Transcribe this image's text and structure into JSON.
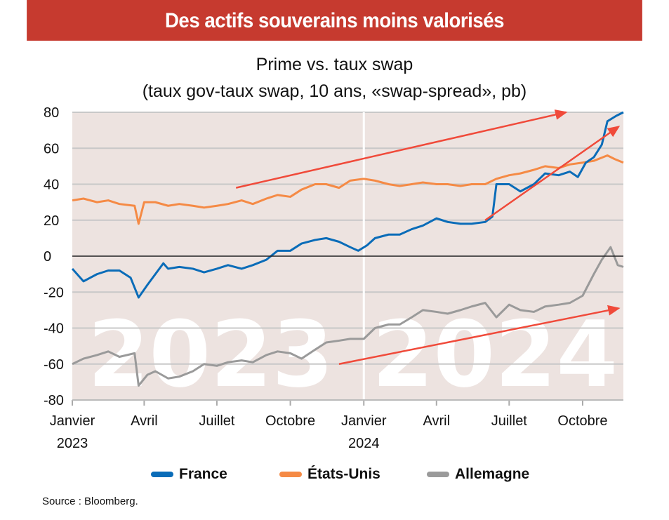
{
  "banner": "Des actifs souverains moins valorisés",
  "chart_data": {
    "type": "line",
    "title": "Prime vs. taux swap",
    "subtitle": "(taux gov-taux swap, 10 ans, «swap-spread», pb)",
    "ylim": [
      -80,
      80
    ],
    "yticks": [
      80,
      60,
      40,
      20,
      0,
      -20,
      -40,
      -60,
      -80
    ],
    "xlim": [
      "2023-01-01",
      "2024-11-21"
    ],
    "xticks": [
      {
        "date": "2023-01-01",
        "label": "Janvier",
        "sub": "2023"
      },
      {
        "date": "2023-04-01",
        "label": "Avril",
        "sub": ""
      },
      {
        "date": "2023-07-01",
        "label": "Juillet",
        "sub": ""
      },
      {
        "date": "2023-10-01",
        "label": "Octobre",
        "sub": ""
      },
      {
        "date": "2024-01-01",
        "label": "Janvier",
        "sub": "2024"
      },
      {
        "date": "2024-04-01",
        "label": "Avril",
        "sub": ""
      },
      {
        "date": "2024-07-01",
        "label": "Juillet",
        "sub": ""
      },
      {
        "date": "2024-10-01",
        "label": "Octobre",
        "sub": ""
      }
    ],
    "grid": true,
    "legend_position": "bottom",
    "watermarks": [
      "2023",
      "2024"
    ],
    "series": [
      {
        "name": "France",
        "color": "#0a6cb8",
        "points": [
          [
            "2023-01-01",
            -7
          ],
          [
            "2023-01-15",
            -14
          ],
          [
            "2023-02-01",
            -10
          ],
          [
            "2023-02-15",
            -8
          ],
          [
            "2023-03-01",
            -8
          ],
          [
            "2023-03-15",
            -12
          ],
          [
            "2023-03-25",
            -23
          ],
          [
            "2023-04-05",
            -16
          ],
          [
            "2023-04-15",
            -10
          ],
          [
            "2023-04-25",
            -4
          ],
          [
            "2023-05-01",
            -7
          ],
          [
            "2023-05-15",
            -6
          ],
          [
            "2023-06-01",
            -7
          ],
          [
            "2023-06-15",
            -9
          ],
          [
            "2023-07-01",
            -7
          ],
          [
            "2023-07-15",
            -5
          ],
          [
            "2023-08-01",
            -7
          ],
          [
            "2023-08-15",
            -5
          ],
          [
            "2023-09-01",
            -2
          ],
          [
            "2023-09-15",
            3
          ],
          [
            "2023-10-01",
            3
          ],
          [
            "2023-10-15",
            7
          ],
          [
            "2023-11-01",
            9
          ],
          [
            "2023-11-15",
            10
          ],
          [
            "2023-12-01",
            8
          ],
          [
            "2023-12-15",
            5
          ],
          [
            "2023-12-25",
            3
          ],
          [
            "2024-01-05",
            6
          ],
          [
            "2024-01-15",
            10
          ],
          [
            "2024-02-01",
            12
          ],
          [
            "2024-02-15",
            12
          ],
          [
            "2024-03-01",
            15
          ],
          [
            "2024-03-15",
            17
          ],
          [
            "2024-04-01",
            21
          ],
          [
            "2024-04-15",
            19
          ],
          [
            "2024-05-01",
            18
          ],
          [
            "2024-05-15",
            18
          ],
          [
            "2024-06-01",
            19
          ],
          [
            "2024-06-10",
            22
          ],
          [
            "2024-06-15",
            40
          ],
          [
            "2024-07-01",
            40
          ],
          [
            "2024-07-15",
            36
          ],
          [
            "2024-08-01",
            40
          ],
          [
            "2024-08-15",
            46
          ],
          [
            "2024-09-01",
            45
          ],
          [
            "2024-09-15",
            47
          ],
          [
            "2024-09-25",
            44
          ],
          [
            "2024-10-05",
            52
          ],
          [
            "2024-10-15",
            55
          ],
          [
            "2024-10-25",
            62
          ],
          [
            "2024-11-01",
            75
          ],
          [
            "2024-11-12",
            78
          ],
          [
            "2024-11-21",
            80
          ]
        ]
      },
      {
        "name": "États-Unis",
        "color": "#f58a45",
        "points": [
          [
            "2023-01-01",
            31
          ],
          [
            "2023-01-15",
            32
          ],
          [
            "2023-02-01",
            30
          ],
          [
            "2023-02-15",
            31
          ],
          [
            "2023-03-01",
            29
          ],
          [
            "2023-03-20",
            28
          ],
          [
            "2023-03-25",
            18
          ],
          [
            "2023-04-01",
            30
          ],
          [
            "2023-04-15",
            30
          ],
          [
            "2023-05-01",
            28
          ],
          [
            "2023-05-15",
            29
          ],
          [
            "2023-06-01",
            28
          ],
          [
            "2023-06-15",
            27
          ],
          [
            "2023-07-01",
            28
          ],
          [
            "2023-07-15",
            29
          ],
          [
            "2023-08-01",
            31
          ],
          [
            "2023-08-15",
            29
          ],
          [
            "2023-09-01",
            32
          ],
          [
            "2023-09-15",
            34
          ],
          [
            "2023-10-01",
            33
          ],
          [
            "2023-10-15",
            37
          ],
          [
            "2023-11-01",
            40
          ],
          [
            "2023-11-15",
            40
          ],
          [
            "2023-12-01",
            38
          ],
          [
            "2023-12-15",
            42
          ],
          [
            "2024-01-01",
            43
          ],
          [
            "2024-01-15",
            42
          ],
          [
            "2024-02-01",
            40
          ],
          [
            "2024-02-15",
            39
          ],
          [
            "2024-03-01",
            40
          ],
          [
            "2024-03-15",
            41
          ],
          [
            "2024-04-01",
            40
          ],
          [
            "2024-04-15",
            40
          ],
          [
            "2024-05-01",
            39
          ],
          [
            "2024-05-15",
            40
          ],
          [
            "2024-06-01",
            40
          ],
          [
            "2024-06-15",
            43
          ],
          [
            "2024-07-01",
            45
          ],
          [
            "2024-07-15",
            46
          ],
          [
            "2024-08-01",
            48
          ],
          [
            "2024-08-15",
            50
          ],
          [
            "2024-09-01",
            49
          ],
          [
            "2024-09-15",
            51
          ],
          [
            "2024-10-01",
            52
          ],
          [
            "2024-10-15",
            53
          ],
          [
            "2024-11-01",
            56
          ],
          [
            "2024-11-10",
            54
          ],
          [
            "2024-11-21",
            52
          ]
        ]
      },
      {
        "name": "Allemagne",
        "color": "#9a9a9a",
        "points": [
          [
            "2023-01-01",
            -60
          ],
          [
            "2023-01-15",
            -57
          ],
          [
            "2023-02-01",
            -55
          ],
          [
            "2023-02-15",
            -53
          ],
          [
            "2023-03-01",
            -56
          ],
          [
            "2023-03-20",
            -54
          ],
          [
            "2023-03-25",
            -72
          ],
          [
            "2023-04-05",
            -66
          ],
          [
            "2023-04-15",
            -64
          ],
          [
            "2023-05-01",
            -68
          ],
          [
            "2023-05-15",
            -67
          ],
          [
            "2023-06-01",
            -64
          ],
          [
            "2023-06-15",
            -60
          ],
          [
            "2023-07-01",
            -61
          ],
          [
            "2023-07-15",
            -59
          ],
          [
            "2023-08-01",
            -58
          ],
          [
            "2023-08-15",
            -59
          ],
          [
            "2023-09-01",
            -55
          ],
          [
            "2023-09-15",
            -53
          ],
          [
            "2023-10-01",
            -54
          ],
          [
            "2023-10-15",
            -57
          ],
          [
            "2023-11-01",
            -52
          ],
          [
            "2023-11-15",
            -48
          ],
          [
            "2023-12-01",
            -47
          ],
          [
            "2023-12-15",
            -46
          ],
          [
            "2024-01-01",
            -46
          ],
          [
            "2024-01-15",
            -40
          ],
          [
            "2024-02-01",
            -38
          ],
          [
            "2024-02-15",
            -38
          ],
          [
            "2024-03-01",
            -34
          ],
          [
            "2024-03-15",
            -30
          ],
          [
            "2024-04-01",
            -31
          ],
          [
            "2024-04-15",
            -32
          ],
          [
            "2024-05-01",
            -30
          ],
          [
            "2024-05-15",
            -28
          ],
          [
            "2024-06-01",
            -26
          ],
          [
            "2024-06-15",
            -34
          ],
          [
            "2024-07-01",
            -27
          ],
          [
            "2024-07-15",
            -30
          ],
          [
            "2024-08-01",
            -31
          ],
          [
            "2024-08-15",
            -28
          ],
          [
            "2024-09-01",
            -27
          ],
          [
            "2024-09-15",
            -26
          ],
          [
            "2024-10-01",
            -22
          ],
          [
            "2024-10-15",
            -10
          ],
          [
            "2024-10-25",
            -2
          ],
          [
            "2024-11-05",
            5
          ],
          [
            "2024-11-14",
            -5
          ],
          [
            "2024-11-21",
            -6
          ]
        ]
      }
    ],
    "annotations": [
      {
        "type": "arrow",
        "color": "#f04a3a",
        "from": [
          "2023-07-25",
          38
        ],
        "to": [
          "2024-09-10",
          80
        ]
      },
      {
        "type": "arrow",
        "color": "#f04a3a",
        "from": [
          "2024-06-01",
          20
        ],
        "to": [
          "2024-11-15",
          72
        ]
      },
      {
        "type": "arrow",
        "color": "#f04a3a",
        "from": [
          "2023-12-01",
          -60
        ],
        "to": [
          "2024-11-15",
          -29
        ]
      }
    ]
  },
  "source": "Source : Bloomberg."
}
